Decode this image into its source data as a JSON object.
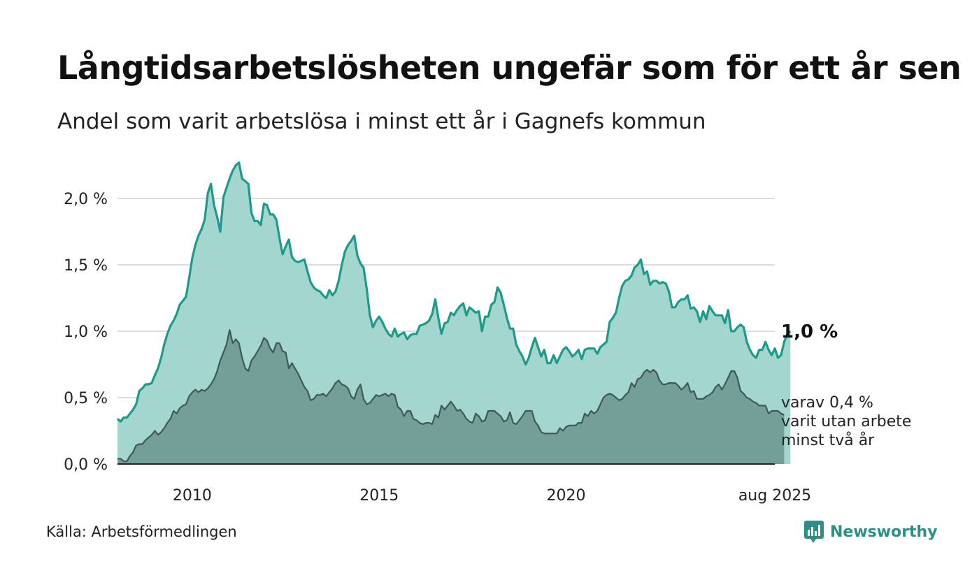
{
  "header": {
    "title": "Långtidsarbetslösheten ungefär som för ett år sen",
    "subtitle": "Andel som varit arbetslösa i minst ett år i Gagnefs kommun"
  },
  "footer": {
    "source": "Källa: Arbetsförmedlingen",
    "brand": "Newsworthy"
  },
  "chart_data": {
    "type": "area",
    "x_start": "2008-01",
    "x_end": "2025-08",
    "x_frequency": "monthly",
    "x_ticks": [
      "2010",
      "2015",
      "2020",
      "aug 2025"
    ],
    "y_ticks": [
      "0,0 %",
      "0,5 %",
      "1,0 %",
      "1,5 %",
      "2,0 %"
    ],
    "ylim": [
      0,
      2.3
    ],
    "grid": true,
    "end_label": "1,0 %",
    "end_sublabel": [
      "varav 0,4 %",
      "varit utan arbete",
      "minst två år"
    ],
    "colors": {
      "series1_line": "#1f9a8a",
      "series1_fill": "#a3d6cf",
      "series2_line": "#3e5a55",
      "series2_fill": "#739f98",
      "grid": "#dddddd",
      "baseline": "#222222"
    },
    "series": [
      {
        "values": [
          0.34,
          0.32,
          0.35,
          0.35,
          0.38,
          0.41,
          0.45,
          0.55,
          0.57,
          0.6,
          0.6,
          0.61,
          0.67,
          0.72,
          0.8,
          0.9,
          0.98,
          1.04,
          1.08,
          1.13,
          1.2,
          1.23,
          1.26,
          1.4,
          1.55,
          1.65,
          1.72,
          1.77,
          1.84,
          2.04,
          2.11,
          1.95,
          1.86,
          1.75,
          2.01,
          2.08,
          2.15,
          2.21,
          2.25,
          2.27,
          2.15,
          2.13,
          2.11,
          1.89,
          1.83,
          1.83,
          1.8,
          1.96,
          1.95,
          1.88,
          1.88,
          1.84,
          1.7,
          1.58,
          1.64,
          1.69,
          1.56,
          1.53,
          1.52,
          1.53,
          1.54,
          1.45,
          1.37,
          1.33,
          1.31,
          1.3,
          1.27,
          1.25,
          1.31,
          1.27,
          1.3,
          1.38,
          1.5,
          1.6,
          1.65,
          1.68,
          1.72,
          1.57,
          1.51,
          1.48,
          1.32,
          1.12,
          1.03,
          1.08,
          1.11,
          1.07,
          1.02,
          0.98,
          0.96,
          1.02,
          0.96,
          0.98,
          0.99,
          0.94,
          0.97,
          0.98,
          0.98,
          1.04,
          1.05,
          1.06,
          1.08,
          1.13,
          1.24,
          1.1,
          0.98,
          1.06,
          1.07,
          1.14,
          1.12,
          1.16,
          1.19,
          1.21,
          1.12,
          1.18,
          1.16,
          1.14,
          1.15,
          1.0,
          1.11,
          1.11,
          1.2,
          1.22,
          1.33,
          1.29,
          1.2,
          1.1,
          1.02,
          1.02,
          0.9,
          0.85,
          0.81,
          0.75,
          0.8,
          0.88,
          0.95,
          0.88,
          0.81,
          0.86,
          0.76,
          0.76,
          0.82,
          0.76,
          0.81,
          0.86,
          0.88,
          0.85,
          0.81,
          0.83,
          0.86,
          0.79,
          0.86,
          0.87,
          0.87,
          0.87,
          0.83,
          0.88,
          0.9,
          0.92,
          1.07,
          1.1,
          1.14,
          1.25,
          1.34,
          1.38,
          1.39,
          1.42,
          1.48,
          1.5,
          1.54,
          1.43,
          1.45,
          1.35,
          1.38,
          1.38,
          1.36,
          1.37,
          1.36,
          1.3,
          1.18,
          1.18,
          1.22,
          1.24,
          1.24,
          1.27,
          1.17,
          1.18,
          1.15,
          1.07,
          1.15,
          1.09,
          1.19,
          1.15,
          1.12,
          1.12,
          1.12,
          1.06,
          1.16,
          1.0,
          1.0,
          1.03,
          1.05,
          1.03,
          0.92,
          0.86,
          0.82,
          0.8,
          0.86,
          0.86,
          0.92,
          0.86,
          0.82,
          0.87,
          0.8,
          0.82,
          0.92,
          0.98,
          1.0
        ]
      },
      {
        "values": [
          0.04,
          0.04,
          0.02,
          0.02,
          0.06,
          0.09,
          0.14,
          0.15,
          0.15,
          0.18,
          0.2,
          0.22,
          0.25,
          0.22,
          0.24,
          0.27,
          0.31,
          0.34,
          0.4,
          0.38,
          0.42,
          0.44,
          0.45,
          0.51,
          0.54,
          0.56,
          0.54,
          0.56,
          0.55,
          0.57,
          0.6,
          0.64,
          0.7,
          0.78,
          0.84,
          0.9,
          1.01,
          0.91,
          0.94,
          0.91,
          0.8,
          0.72,
          0.7,
          0.78,
          0.81,
          0.85,
          0.89,
          0.95,
          0.93,
          0.87,
          0.84,
          0.91,
          0.91,
          0.85,
          0.84,
          0.72,
          0.76,
          0.72,
          0.68,
          0.63,
          0.58,
          0.55,
          0.48,
          0.49,
          0.52,
          0.52,
          0.53,
          0.51,
          0.54,
          0.57,
          0.61,
          0.63,
          0.6,
          0.59,
          0.57,
          0.51,
          0.49,
          0.56,
          0.6,
          0.49,
          0.45,
          0.46,
          0.49,
          0.52,
          0.51,
          0.52,
          0.53,
          0.51,
          0.53,
          0.52,
          0.43,
          0.41,
          0.36,
          0.4,
          0.4,
          0.34,
          0.33,
          0.31,
          0.3,
          0.31,
          0.31,
          0.3,
          0.37,
          0.35,
          0.44,
          0.41,
          0.44,
          0.47,
          0.44,
          0.4,
          0.41,
          0.38,
          0.34,
          0.32,
          0.31,
          0.38,
          0.36,
          0.32,
          0.33,
          0.4,
          0.4,
          0.4,
          0.38,
          0.36,
          0.32,
          0.33,
          0.39,
          0.31,
          0.3,
          0.33,
          0.36,
          0.4,
          0.4,
          0.4,
          0.32,
          0.29,
          0.24,
          0.23,
          0.23,
          0.23,
          0.23,
          0.23,
          0.27,
          0.25,
          0.28,
          0.29,
          0.29,
          0.29,
          0.31,
          0.31,
          0.38,
          0.36,
          0.4,
          0.38,
          0.4,
          0.45,
          0.5,
          0.52,
          0.53,
          0.52,
          0.5,
          0.48,
          0.49,
          0.52,
          0.54,
          0.61,
          0.58,
          0.64,
          0.65,
          0.69,
          0.71,
          0.69,
          0.71,
          0.69,
          0.63,
          0.6,
          0.6,
          0.61,
          0.61,
          0.61,
          0.59,
          0.56,
          0.58,
          0.61,
          0.54,
          0.55,
          0.49,
          0.49,
          0.49,
          0.51,
          0.52,
          0.54,
          0.58,
          0.6,
          0.56,
          0.6,
          0.65,
          0.7,
          0.7,
          0.65,
          0.55,
          0.53,
          0.5,
          0.49,
          0.47,
          0.46,
          0.44,
          0.44,
          0.44,
          0.38,
          0.4,
          0.4,
          0.4,
          0.38,
          0.37
        ]
      }
    ]
  }
}
